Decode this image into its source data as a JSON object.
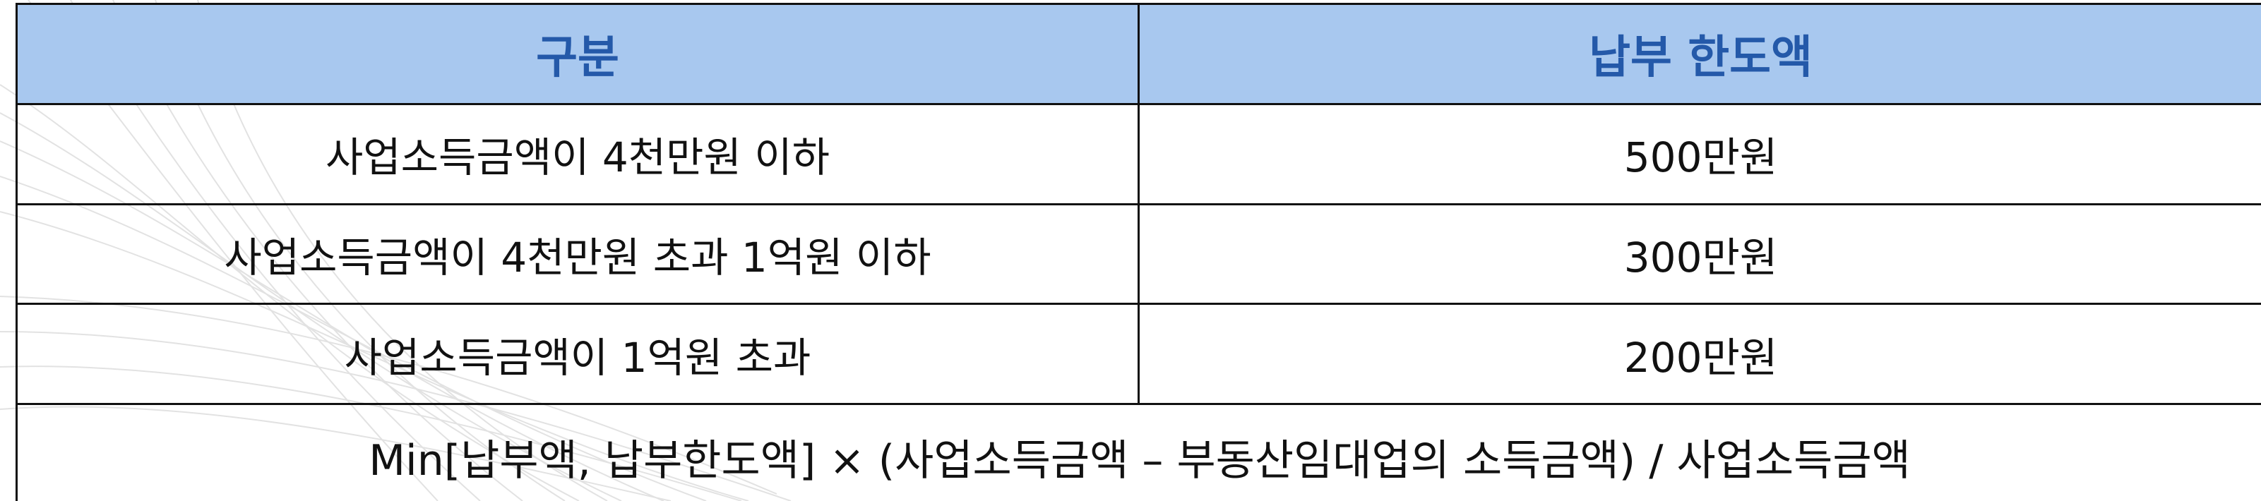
{
  "table": {
    "headers": [
      "구분",
      "납부 한도액"
    ],
    "rows": [
      [
        "사업소득금액이 4천만원 이하",
        "500만원"
      ],
      [
        "사업소득금액이 4천만원 초과 1억원 이하",
        "300만원"
      ],
      [
        "사업소득금액이 1억원 초과",
        "200만원"
      ]
    ],
    "formula": "Min[납부액, 납부한도액] × (사업소득금액 – 부동산임대업의 소득금액) / 사업소득금액"
  },
  "colors": {
    "header_bg": "#a8c8ef",
    "header_text": "#2459a9",
    "border": "#111111"
  }
}
